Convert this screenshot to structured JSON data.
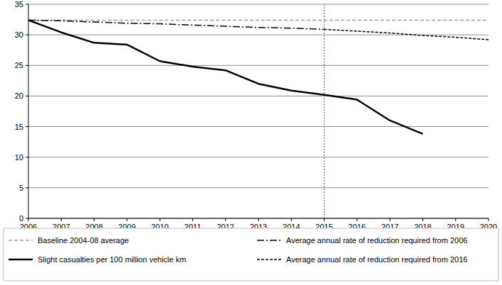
{
  "chart_data": {
    "type": "line",
    "x": [
      2006,
      2007,
      2008,
      2009,
      2010,
      2011,
      2012,
      2013,
      2014,
      2015,
      2016,
      2017,
      2018,
      2019,
      2020
    ],
    "xlim": [
      2006,
      2020
    ],
    "xticks": [
      2006,
      2007,
      2008,
      2009,
      2010,
      2011,
      2012,
      2013,
      2014,
      2015,
      2016,
      2017,
      2018,
      2019,
      2020
    ],
    "ylim": [
      0,
      35
    ],
    "yticks": [
      0,
      5,
      10,
      15,
      20,
      25,
      30,
      35
    ],
    "grid": true,
    "legend": "bottom",
    "vertical_line": 2015,
    "series": [
      {
        "name": "Baseline 2004-08 average",
        "color": "#a0a0a0",
        "line_style": "dashed",
        "values": [
          32.4,
          32.4,
          32.4,
          32.4,
          32.4,
          32.4,
          32.4,
          32.4,
          32.4,
          32.4,
          32.4,
          32.4,
          32.4,
          32.4,
          32.4
        ]
      },
      {
        "name": "Average annual rate of reduction required from 2006",
        "color": "#000000",
        "line_style": "dash-dot",
        "values": [
          32.4,
          32.3,
          32.1,
          31.9,
          31.8,
          31.6,
          31.4,
          31.2,
          31.1,
          30.9,
          null,
          null,
          null,
          null,
          null
        ]
      },
      {
        "name": "Slight casualties per 100 million vehicle km",
        "color": "#000000",
        "line_style": "solid",
        "values": [
          32.4,
          30.4,
          28.7,
          28.4,
          25.7,
          24.8,
          24.2,
          22.0,
          20.9,
          20.2,
          19.4,
          16.0,
          13.8,
          null,
          null
        ]
      },
      {
        "name": "Average annual rate of reduction required from 2016",
        "color": "#000000",
        "line_style": "short-dashed",
        "values": [
          null,
          null,
          null,
          null,
          null,
          null,
          null,
          null,
          null,
          30.9,
          30.6,
          30.3,
          29.9,
          29.6,
          29.2
        ]
      }
    ]
  }
}
